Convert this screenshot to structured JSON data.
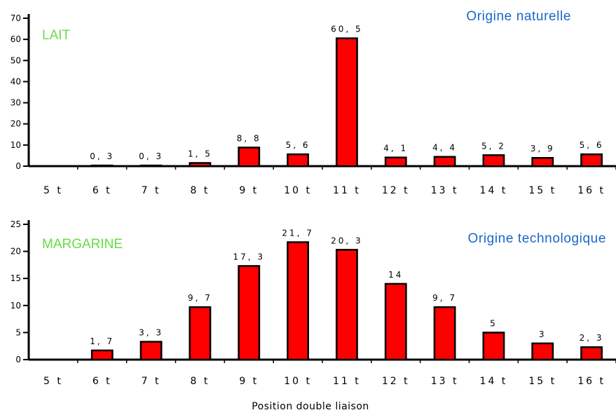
{
  "chart_data": [
    {
      "type": "bar",
      "categories": [
        "5 t",
        "6 t",
        "7 t",
        "8 t",
        "9 t",
        "10 t",
        "11 t",
        "12 t",
        "13 t",
        "14 t",
        "15 t",
        "16 t"
      ],
      "values": [
        null,
        0.3,
        0.3,
        1.5,
        8.8,
        5.6,
        60.5,
        4.1,
        4.4,
        5.2,
        3.9,
        5.6
      ],
      "data_labels": [
        "",
        "0, 3",
        "0, 3",
        "1, 5",
        "8, 8",
        "5, 6",
        "60, 5",
        "4, 1",
        "4, 4",
        "5, 2",
        "3, 9",
        "5, 6"
      ],
      "product_label": "LAIT",
      "origin_label": "Origine naturelle",
      "ylim": [
        0,
        70
      ],
      "yticks": [
        0,
        10,
        20,
        30,
        40,
        50,
        60,
        70
      ],
      "bar_color": "#ff0000",
      "grid": false
    },
    {
      "type": "bar",
      "categories": [
        "5 t",
        "6 t",
        "7 t",
        "8 t",
        "9 t",
        "10 t",
        "11 t",
        "12 t",
        "13 t",
        "14 t",
        "15 t",
        "16 t"
      ],
      "values": [
        null,
        1.7,
        3.3,
        9.7,
        17.3,
        21.7,
        20.3,
        14,
        9.7,
        5,
        3,
        2.3
      ],
      "data_labels": [
        "",
        "1, 7",
        "3, 3",
        "9, 7",
        "17, 3",
        "21, 7",
        "20, 3",
        "14",
        "9, 7",
        "5",
        "3",
        "2, 3"
      ],
      "product_label": "MARGARINE",
      "origin_label": "Origine technologique",
      "ylim": [
        0,
        25
      ],
      "yticks": [
        0,
        5,
        10,
        15,
        20,
        25
      ],
      "bar_color": "#ff0000",
      "grid": false
    }
  ],
  "xlabel": "Position double liaison"
}
